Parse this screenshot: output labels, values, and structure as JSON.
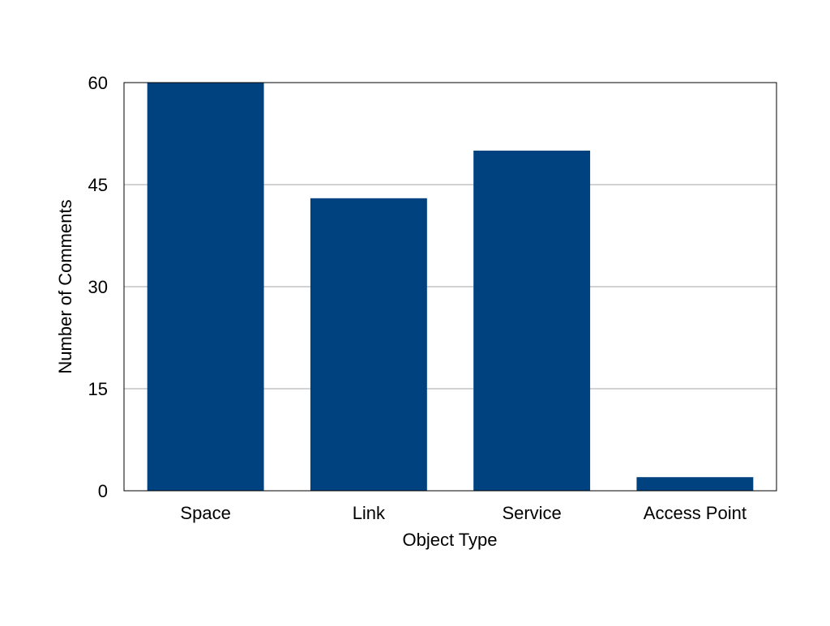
{
  "chart_data": {
    "type": "bar",
    "title": "",
    "xlabel": "Object Type",
    "ylabel": "Number of Comments",
    "categories": [
      "Space",
      "Link",
      "Service",
      "Access Point"
    ],
    "values": [
      60,
      43,
      50,
      2
    ],
    "ylim": [
      0,
      60
    ],
    "yticks": [
      0,
      15,
      30,
      45,
      60
    ],
    "grid": true,
    "bar_color": "#00417f",
    "gridline_color": "#a6a6a6"
  }
}
